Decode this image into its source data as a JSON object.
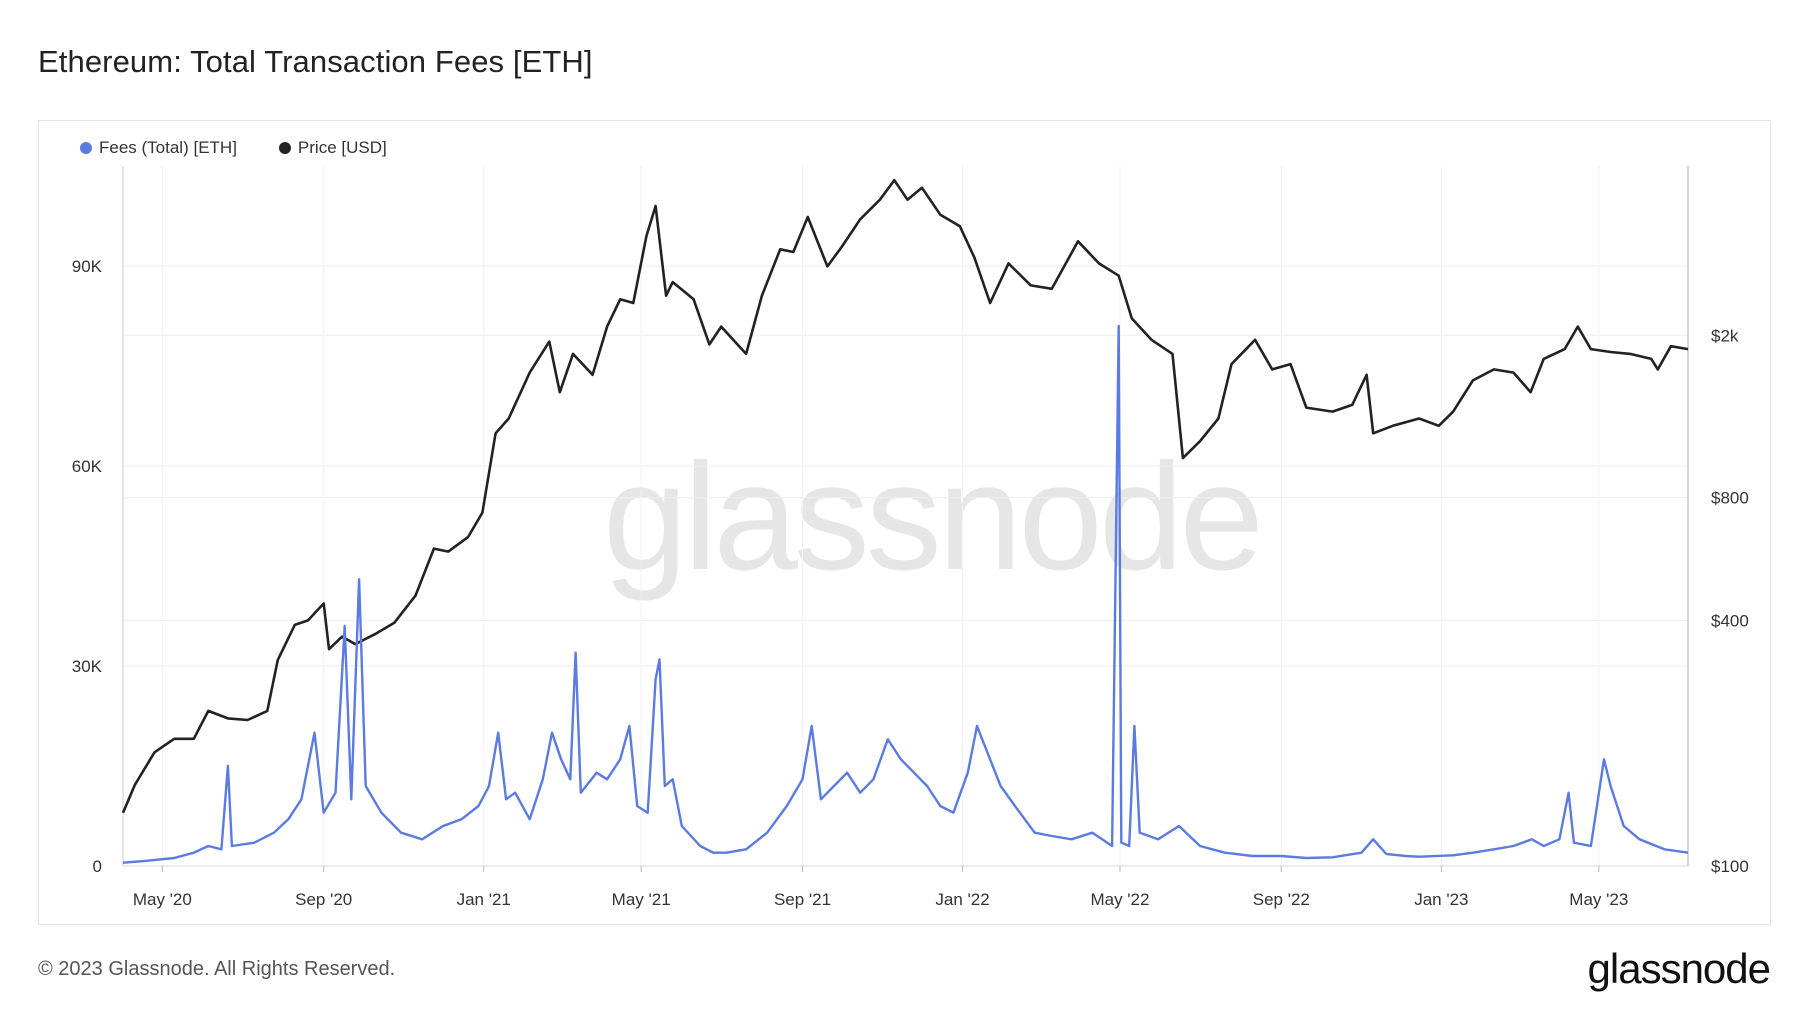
{
  "title": "Ethereum: Total Transaction Fees [ETH]",
  "footer": {
    "copyright": "© 2023 Glassnode. All Rights Reserved.",
    "logo": "glassnode"
  },
  "watermark": "glassnode",
  "colors": {
    "fees": "#5b7be1",
    "price": "#222222",
    "grid": "#eeeeee"
  },
  "chart_data": {
    "type": "line",
    "title": "Ethereum: Total Transaction Fees [ETH]",
    "legend_position": "top-left",
    "grid": true,
    "x_range": [
      "2020-04-01",
      "2023-07-08"
    ],
    "x_ticks": [
      "May '20",
      "Sep '20",
      "Jan '21",
      "May '21",
      "Sep '21",
      "Jan '22",
      "May '22",
      "Sep '22",
      "Jan '23",
      "May '23"
    ],
    "y_left": {
      "ticks": [
        "0",
        "30K",
        "60K",
        "90K"
      ],
      "tick_values": [
        0,
        30000,
        60000,
        90000
      ],
      "range": [
        0,
        105000
      ],
      "scale": "linear"
    },
    "y_right": {
      "ticks": [
        "$100",
        "$400",
        "$800",
        "$2k"
      ],
      "tick_values": [
        100,
        400,
        800,
        2000
      ],
      "range": [
        100,
        5200
      ],
      "scale": "log"
    },
    "series": [
      {
        "name": "Fees (Total) [ETH]",
        "axis": "left",
        "points": [
          [
            "2020-04-01",
            500
          ],
          [
            "2020-04-20",
            800
          ],
          [
            "2020-05-10",
            1200
          ],
          [
            "2020-05-25",
            2000
          ],
          [
            "2020-06-05",
            3000
          ],
          [
            "2020-06-15",
            2500
          ],
          [
            "2020-06-20",
            15000
          ],
          [
            "2020-06-23",
            3000
          ],
          [
            "2020-07-10",
            3500
          ],
          [
            "2020-07-25",
            5000
          ],
          [
            "2020-08-05",
            7000
          ],
          [
            "2020-08-15",
            10000
          ],
          [
            "2020-08-25",
            20000
          ],
          [
            "2020-09-01",
            8000
          ],
          [
            "2020-09-10",
            11000
          ],
          [
            "2020-09-17",
            36000
          ],
          [
            "2020-09-22",
            10000
          ],
          [
            "2020-09-28",
            43000
          ],
          [
            "2020-10-03",
            12000
          ],
          [
            "2020-10-15",
            8000
          ],
          [
            "2020-10-30",
            5000
          ],
          [
            "2020-11-15",
            4000
          ],
          [
            "2020-12-01",
            6000
          ],
          [
            "2020-12-15",
            7000
          ],
          [
            "2020-12-28",
            9000
          ],
          [
            "2021-01-05",
            12000
          ],
          [
            "2021-01-12",
            20000
          ],
          [
            "2021-01-18",
            10000
          ],
          [
            "2021-01-25",
            11000
          ],
          [
            "2021-02-05",
            7000
          ],
          [
            "2021-02-15",
            13000
          ],
          [
            "2021-02-22",
            20000
          ],
          [
            "2021-03-01",
            16000
          ],
          [
            "2021-03-08",
            13000
          ],
          [
            "2021-03-12",
            32000
          ],
          [
            "2021-03-16",
            11000
          ],
          [
            "2021-03-28",
            14000
          ],
          [
            "2021-04-05",
            13000
          ],
          [
            "2021-04-15",
            16000
          ],
          [
            "2021-04-22",
            21000
          ],
          [
            "2021-04-28",
            9000
          ],
          [
            "2021-05-06",
            8000
          ],
          [
            "2021-05-12",
            28000
          ],
          [
            "2021-05-15",
            31000
          ],
          [
            "2021-05-19",
            12000
          ],
          [
            "2021-05-25",
            13000
          ],
          [
            "2021-06-01",
            6000
          ],
          [
            "2021-06-15",
            3000
          ],
          [
            "2021-06-25",
            2000
          ],
          [
            "2021-07-05",
            2000
          ],
          [
            "2021-07-20",
            2500
          ],
          [
            "2021-08-05",
            5000
          ],
          [
            "2021-08-20",
            9000
          ],
          [
            "2021-09-01",
            13000
          ],
          [
            "2021-09-08",
            21000
          ],
          [
            "2021-09-15",
            10000
          ],
          [
            "2021-09-25",
            12000
          ],
          [
            "2021-10-05",
            14000
          ],
          [
            "2021-10-15",
            11000
          ],
          [
            "2021-10-25",
            13000
          ],
          [
            "2021-11-05",
            19000
          ],
          [
            "2021-11-15",
            16000
          ],
          [
            "2021-11-25",
            14000
          ],
          [
            "2021-12-05",
            12000
          ],
          [
            "2021-12-15",
            9000
          ],
          [
            "2021-12-25",
            8000
          ],
          [
            "2022-01-05",
            14000
          ],
          [
            "2022-01-12",
            21000
          ],
          [
            "2022-01-20",
            17000
          ],
          [
            "2022-01-30",
            12000
          ],
          [
            "2022-02-10",
            9000
          ],
          [
            "2022-02-25",
            5000
          ],
          [
            "2022-03-10",
            4500
          ],
          [
            "2022-03-25",
            4000
          ],
          [
            "2022-04-10",
            5000
          ],
          [
            "2022-04-25",
            3000
          ],
          [
            "2022-04-30",
            81000
          ],
          [
            "2022-05-02",
            3500
          ],
          [
            "2022-05-08",
            3000
          ],
          [
            "2022-05-12",
            21000
          ],
          [
            "2022-05-16",
            5000
          ],
          [
            "2022-05-30",
            4000
          ],
          [
            "2022-06-15",
            6000
          ],
          [
            "2022-07-01",
            3000
          ],
          [
            "2022-07-20",
            2000
          ],
          [
            "2022-08-10",
            1500
          ],
          [
            "2022-09-01",
            1500
          ],
          [
            "2022-09-20",
            1200
          ],
          [
            "2022-10-10",
            1300
          ],
          [
            "2022-11-01",
            2000
          ],
          [
            "2022-11-10",
            4000
          ],
          [
            "2022-11-20",
            1800
          ],
          [
            "2022-12-05",
            1500
          ],
          [
            "2022-12-15",
            1400
          ],
          [
            "2023-01-10",
            1600
          ],
          [
            "2023-01-25",
            2000
          ],
          [
            "2023-02-10",
            2500
          ],
          [
            "2023-02-25",
            3000
          ],
          [
            "2023-03-11",
            4000
          ],
          [
            "2023-03-20",
            3000
          ],
          [
            "2023-04-01",
            4000
          ],
          [
            "2023-04-08",
            11000
          ],
          [
            "2023-04-12",
            3500
          ],
          [
            "2023-04-25",
            3000
          ],
          [
            "2023-05-05",
            16000
          ],
          [
            "2023-05-10",
            12000
          ],
          [
            "2023-05-20",
            6000
          ],
          [
            "2023-06-01",
            4000
          ],
          [
            "2023-06-20",
            2500
          ],
          [
            "2023-07-08",
            2000
          ]
        ]
      },
      {
        "name": "Price [USD]",
        "axis": "right",
        "points": [
          [
            "2020-04-01",
            135
          ],
          [
            "2020-04-10",
            158
          ],
          [
            "2020-04-25",
            190
          ],
          [
            "2020-05-10",
            205
          ],
          [
            "2020-05-25",
            205
          ],
          [
            "2020-06-05",
            240
          ],
          [
            "2020-06-20",
            230
          ],
          [
            "2020-07-05",
            228
          ],
          [
            "2020-07-20",
            240
          ],
          [
            "2020-07-28",
            320
          ],
          [
            "2020-08-10",
            390
          ],
          [
            "2020-08-20",
            400
          ],
          [
            "2020-09-01",
            440
          ],
          [
            "2020-09-05",
            340
          ],
          [
            "2020-09-15",
            365
          ],
          [
            "2020-09-25",
            350
          ],
          [
            "2020-10-10",
            370
          ],
          [
            "2020-10-25",
            395
          ],
          [
            "2020-11-10",
            460
          ],
          [
            "2020-11-24",
            600
          ],
          [
            "2020-12-05",
            590
          ],
          [
            "2020-12-20",
            640
          ],
          [
            "2020-12-31",
            735
          ],
          [
            "2021-01-10",
            1150
          ],
          [
            "2021-01-20",
            1250
          ],
          [
            "2021-02-05",
            1620
          ],
          [
            "2021-02-20",
            1930
          ],
          [
            "2021-02-28",
            1450
          ],
          [
            "2021-03-10",
            1800
          ],
          [
            "2021-03-25",
            1600
          ],
          [
            "2021-04-05",
            2100
          ],
          [
            "2021-04-15",
            2450
          ],
          [
            "2021-04-25",
            2400
          ],
          [
            "2021-05-05",
            3500
          ],
          [
            "2021-05-12",
            4150
          ],
          [
            "2021-05-20",
            2500
          ],
          [
            "2021-05-25",
            2700
          ],
          [
            "2021-06-10",
            2450
          ],
          [
            "2021-06-22",
            1900
          ],
          [
            "2021-07-01",
            2100
          ],
          [
            "2021-07-20",
            1800
          ],
          [
            "2021-08-01",
            2500
          ],
          [
            "2021-08-15",
            3250
          ],
          [
            "2021-08-25",
            3200
          ],
          [
            "2021-09-05",
            3900
          ],
          [
            "2021-09-20",
            2950
          ],
          [
            "2021-10-01",
            3300
          ],
          [
            "2021-10-15",
            3850
          ],
          [
            "2021-10-30",
            4300
          ],
          [
            "2021-11-10",
            4800
          ],
          [
            "2021-11-20",
            4300
          ],
          [
            "2021-12-01",
            4600
          ],
          [
            "2021-12-15",
            3950
          ],
          [
            "2021-12-30",
            3700
          ],
          [
            "2022-01-10",
            3100
          ],
          [
            "2022-01-22",
            2400
          ],
          [
            "2022-02-05",
            3000
          ],
          [
            "2022-02-22",
            2650
          ],
          [
            "2022-03-10",
            2600
          ],
          [
            "2022-03-30",
            3400
          ],
          [
            "2022-04-15",
            3000
          ],
          [
            "2022-04-30",
            2800
          ],
          [
            "2022-05-10",
            2200
          ],
          [
            "2022-05-25",
            1950
          ],
          [
            "2022-06-10",
            1800
          ],
          [
            "2022-06-18",
            1000
          ],
          [
            "2022-07-01",
            1100
          ],
          [
            "2022-07-15",
            1250
          ],
          [
            "2022-07-25",
            1700
          ],
          [
            "2022-08-12",
            1950
          ],
          [
            "2022-08-25",
            1650
          ],
          [
            "2022-09-08",
            1700
          ],
          [
            "2022-09-20",
            1330
          ],
          [
            "2022-10-10",
            1300
          ],
          [
            "2022-10-25",
            1350
          ],
          [
            "2022-11-05",
            1600
          ],
          [
            "2022-11-10",
            1150
          ],
          [
            "2022-11-25",
            1200
          ],
          [
            "2022-12-15",
            1250
          ],
          [
            "2022-12-30",
            1200
          ],
          [
            "2023-01-10",
            1300
          ],
          [
            "2023-01-25",
            1550
          ],
          [
            "2023-02-10",
            1650
          ],
          [
            "2023-02-25",
            1620
          ],
          [
            "2023-03-10",
            1450
          ],
          [
            "2023-03-20",
            1750
          ],
          [
            "2023-04-05",
            1850
          ],
          [
            "2023-04-15",
            2100
          ],
          [
            "2023-04-25",
            1850
          ],
          [
            "2023-05-10",
            1820
          ],
          [
            "2023-05-25",
            1800
          ],
          [
            "2023-06-10",
            1750
          ],
          [
            "2023-06-15",
            1650
          ],
          [
            "2023-06-25",
            1880
          ],
          [
            "2023-07-08",
            1850
          ]
        ]
      }
    ]
  }
}
